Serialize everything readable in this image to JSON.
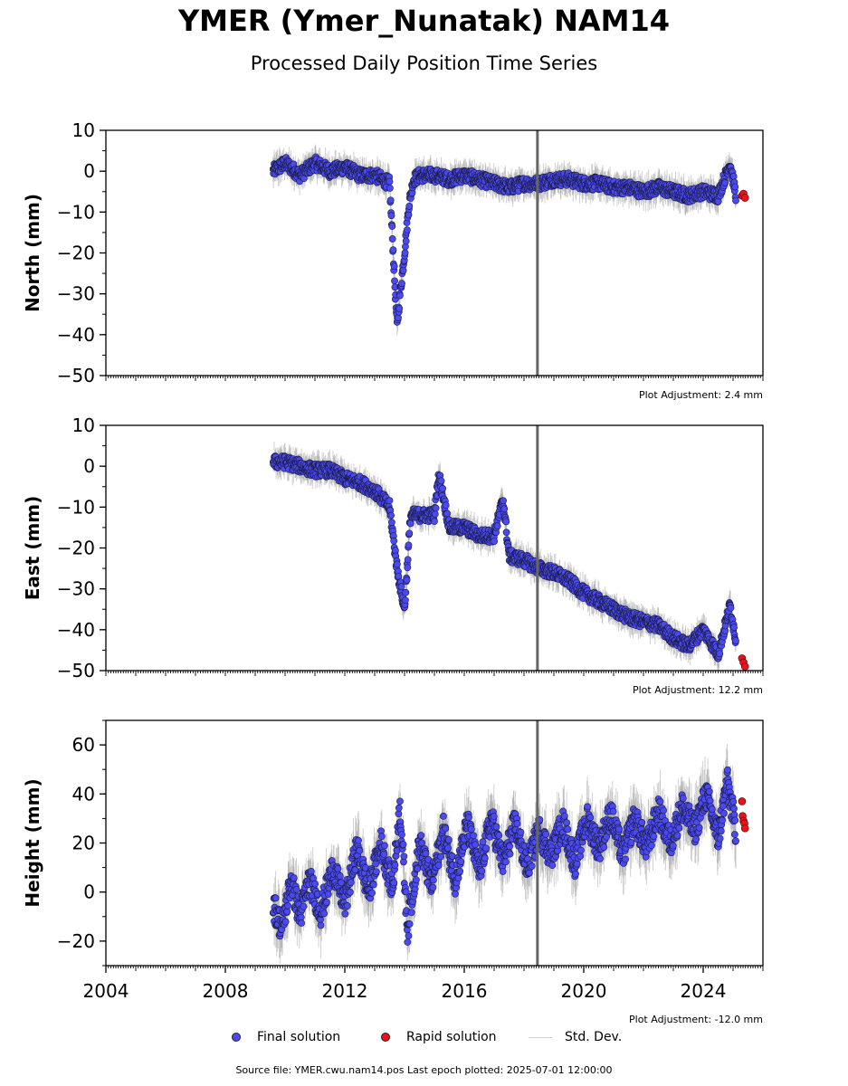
{
  "header": {
    "title": "YMER (Ymer_Nunatak) NAM14",
    "subtitle": "Processed Daily Position Time Series"
  },
  "legend": {
    "final_label": "Final solution",
    "rapid_label": "Rapid solution",
    "std_label": "Std. Dev."
  },
  "footer": {
    "source": "Source file: YMER.cwu.nam14.pos  Last epoch plotted: 2025-07-01 12:00:00"
  },
  "colors": {
    "final": "#4a4af0",
    "rapid": "#e8141b",
    "std": "#999999",
    "event_line": "#666666"
  },
  "chart_data": [
    {
      "type": "scatter",
      "ylabel": "North (mm)",
      "xlim": [
        2004,
        2026
      ],
      "ylim": [
        -50,
        10
      ],
      "yticks": [
        10,
        0,
        -10,
        -20,
        -30,
        -40,
        -50
      ],
      "ytick_labels": [
        "10",
        "0",
        "−10",
        "−20",
        "−30",
        "−40",
        "−50"
      ],
      "x_tick_labels_shown": false,
      "vertical_line_x": 2018.45,
      "adjustment": "Plot Adjustment: 2.4 mm",
      "final_series": {
        "name": "Final solution",
        "x": [
          2009.6,
          2010.0,
          2010.5,
          2011.0,
          2011.5,
          2012.0,
          2012.5,
          2013.0,
          2013.5,
          2013.75,
          2013.85,
          2014.0,
          2014.15,
          2014.3,
          2014.5,
          2015.0,
          2015.5,
          2016.0,
          2016.5,
          2017.0,
          2017.5,
          2018.0,
          2018.5,
          2019.0,
          2019.5,
          2020.0,
          2020.5,
          2021.0,
          2021.5,
          2022.0,
          2022.5,
          2023.0,
          2023.5,
          2024.0,
          2024.5,
          2024.9,
          2025.1
        ],
        "y": [
          0,
          2,
          -1,
          2,
          0,
          1,
          -1,
          -1,
          -3,
          -38,
          -30,
          -20,
          -8,
          -2,
          -1,
          -1,
          -2,
          -1,
          -2,
          -3,
          -4,
          -3,
          -3,
          -2,
          -2,
          -3,
          -3,
          -4,
          -4,
          -5,
          -4,
          -5,
          -6,
          -5,
          -6,
          2,
          -6
        ]
      },
      "rapid_series": {
        "name": "Rapid solution",
        "x": [
          2025.3,
          2025.35,
          2025.4
        ],
        "y": [
          -6,
          -5.5,
          -6.5
        ]
      }
    },
    {
      "type": "scatter",
      "ylabel": "East (mm)",
      "xlim": [
        2004,
        2026
      ],
      "ylim": [
        -50,
        10
      ],
      "yticks": [
        10,
        0,
        -10,
        -20,
        -30,
        -40,
        -50
      ],
      "ytick_labels": [
        "10",
        "0",
        "−10",
        "−20",
        "−30",
        "−40",
        "−50"
      ],
      "x_tick_labels_shown": false,
      "vertical_line_x": 2018.45,
      "adjustment": "Plot Adjustment: 12.2 mm",
      "final_series": {
        "name": "Final solution",
        "x": [
          2009.6,
          2010.0,
          2010.5,
          2011.0,
          2011.5,
          2012.0,
          2012.5,
          2013.0,
          2013.5,
          2013.75,
          2014.0,
          2014.2,
          2014.5,
          2015.0,
          2015.15,
          2015.5,
          2016.0,
          2016.5,
          2017.0,
          2017.3,
          2017.5,
          2018.0,
          2018.5,
          2019.0,
          2019.5,
          2020.0,
          2020.5,
          2021.0,
          2021.5,
          2022.0,
          2022.5,
          2023.0,
          2023.5,
          2024.0,
          2024.5,
          2024.9,
          2025.1
        ],
        "y": [
          1,
          1,
          0,
          -1,
          -1,
          -3,
          -4,
          -6,
          -10,
          -25,
          -35,
          -12,
          -12,
          -12,
          -2,
          -15,
          -15,
          -17,
          -17,
          -8,
          -22,
          -23,
          -25,
          -26,
          -28,
          -31,
          -33,
          -35,
          -37,
          -38,
          -39,
          -42,
          -44,
          -40,
          -46,
          -34,
          -43
        ]
      },
      "rapid_series": {
        "name": "Rapid solution",
        "x": [
          2025.3,
          2025.35,
          2025.4
        ],
        "y": [
          -47,
          -48,
          -49
        ]
      }
    },
    {
      "type": "scatter",
      "ylabel": "Height (mm)",
      "xlim": [
        2004,
        2026
      ],
      "ylim": [
        -30,
        70
      ],
      "yticks": [
        60,
        40,
        20,
        0,
        -20
      ],
      "ytick_labels": [
        "60",
        "40",
        "20",
        "0",
        "−20"
      ],
      "x_tick_labels_shown": true,
      "xticks": [
        2004,
        2008,
        2012,
        2016,
        2020,
        2024
      ],
      "xtick_labels": [
        "2004",
        "2008",
        "2012",
        "2016",
        "2020",
        "2024"
      ],
      "vertical_line_x": 2018.45,
      "adjustment": "Plot Adjustment: -12.0 mm",
      "final_series": {
        "name": "Final solution",
        "x": [
          2009.6,
          2009.9,
          2010.2,
          2010.5,
          2010.8,
          2011.2,
          2011.6,
          2012.0,
          2012.4,
          2012.8,
          2013.2,
          2013.6,
          2013.85,
          2014.1,
          2014.5,
          2014.9,
          2015.3,
          2015.7,
          2016.1,
          2016.5,
          2016.9,
          2017.3,
          2017.7,
          2018.1,
          2018.5,
          2018.9,
          2019.3,
          2019.7,
          2020.1,
          2020.5,
          2020.9,
          2021.3,
          2021.7,
          2022.1,
          2022.5,
          2022.9,
          2023.3,
          2023.7,
          2024.1,
          2024.5,
          2024.8,
          2025.1
        ],
        "y": [
          -5,
          -15,
          5,
          -10,
          5,
          -8,
          10,
          -5,
          18,
          0,
          20,
          2,
          35,
          -15,
          20,
          3,
          25,
          5,
          28,
          8,
          30,
          12,
          28,
          10,
          25,
          15,
          28,
          12,
          30,
          18,
          32,
          15,
          30,
          18,
          33,
          20,
          35,
          25,
          40,
          22,
          45,
          25
        ]
      },
      "rapid_series": {
        "name": "Rapid solution",
        "x": [
          2025.3,
          2025.32,
          2025.35,
          2025.38,
          2025.4
        ],
        "y": [
          37,
          31,
          29,
          28,
          26
        ]
      }
    }
  ]
}
